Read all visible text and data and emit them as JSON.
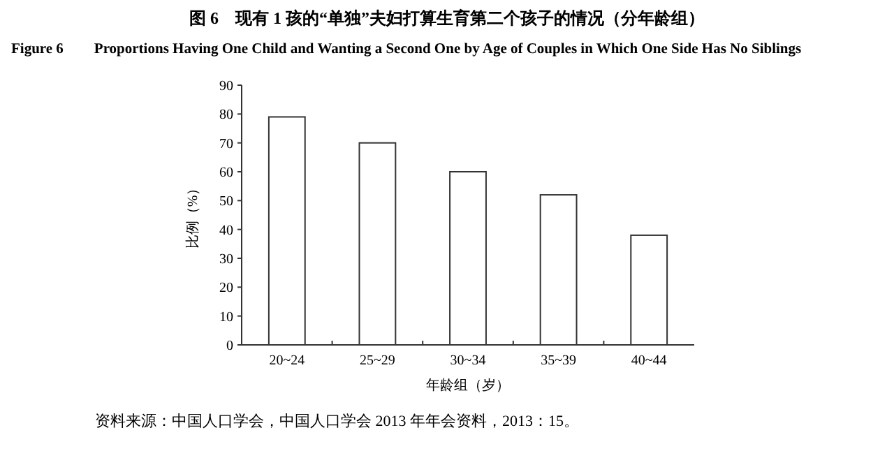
{
  "chart_data": {
    "type": "bar",
    "title": "图 6　现有 1 孩的“单独”夫妇打算生育第二个孩子的情况（分年龄组）",
    "subtitle": "Figure 6　　Proportions Having One Child and Wanting a Second One by Age of Couples in Which One Side Has No Siblings",
    "xlabel": "年龄组（岁）",
    "ylabel": "比例（%）",
    "categories": [
      "20~24",
      "25~29",
      "30~34",
      "35~39",
      "40~44"
    ],
    "values": [
      79,
      70,
      60,
      52,
      38
    ],
    "color": "#ffffff",
    "ylim": [
      0,
      90
    ],
    "yticks": [
      0,
      10,
      20,
      30,
      40,
      50,
      60,
      70,
      80,
      90
    ],
    "grid": false,
    "annotations": [
      "资料来源：中国人口学会，中国人口学会 2013 年年会资料，2013：15。"
    ]
  }
}
